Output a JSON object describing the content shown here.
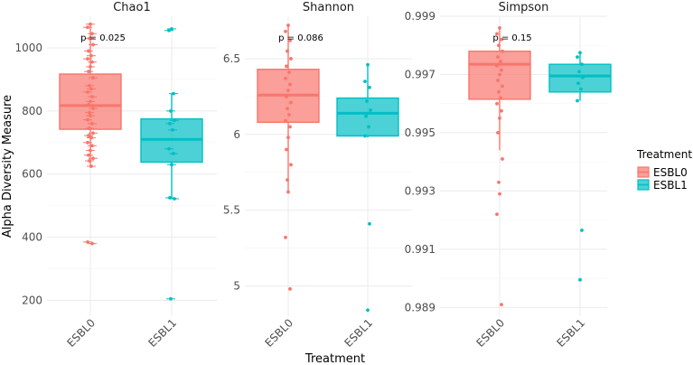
{
  "chart_data": {
    "type": "box",
    "xlabel": "Treatment",
    "ylabel": "Alpha Diversity Measure",
    "categories": [
      "ESBL0",
      "ESBL1"
    ],
    "colors": {
      "ESBL0": "#F8766D",
      "ESBL1": "#00BFC4"
    },
    "legend": {
      "title": "Treatment",
      "entries": [
        "ESBL0",
        "ESBL1"
      ],
      "position": "right"
    },
    "panels": [
      {
        "title": "Chao1",
        "pvalue": "p = 0.025",
        "ylim": [
          150,
          1100
        ],
        "yticks": [
          200,
          400,
          600,
          800,
          1000
        ],
        "boxes": [
          {
            "group": "ESBL0",
            "q1": 742,
            "median": 817,
            "q3": 917,
            "wlow": 620,
            "whigh": 1080,
            "points": [
              1075,
              1065,
              1045,
              1030,
              1010,
              990,
              975,
              965,
              955,
              940,
              925,
              905,
              880,
              870,
              860,
              845,
              830,
              820,
              808,
              795,
              785,
              772,
              760,
              745,
              730,
              722,
              715,
              700,
              690,
              675,
              660,
              650,
              642,
              625,
              385,
              380
            ]
          },
          {
            "group": "ESBL1",
            "q1": 638,
            "median": 710,
            "q3": 775,
            "wlow": 525,
            "whigh": 855,
            "points": [
              1060,
              1055,
              855,
              800,
              770,
              760,
              740,
              680,
              665,
              630,
              525,
              522,
              205
            ]
          }
        ]
      },
      {
        "title": "Shannon",
        "pvalue": "p = 0.086",
        "ylim": [
          4.8,
          6.78
        ],
        "yticks": [
          5.0,
          5.5,
          6.0,
          6.5
        ],
        "boxes": [
          {
            "group": "ESBL0",
            "q1": 6.08,
            "median": 6.26,
            "q3": 6.43,
            "wlow": 5.62,
            "whigh": 6.72,
            "points": [
              6.72,
              6.68,
              6.62,
              6.55,
              6.5,
              6.45,
              6.41,
              6.37,
              6.33,
              6.29,
              6.25,
              6.21,
              6.17,
              6.13,
              6.09,
              6.05,
              5.98,
              5.9,
              5.8,
              5.7,
              5.62,
              5.32,
              4.98
            ]
          },
          {
            "group": "ESBL1",
            "q1": 5.99,
            "median": 6.14,
            "q3": 6.24,
            "wlow": 5.98,
            "whigh": 6.46,
            "points": [
              6.46,
              6.35,
              6.31,
              6.22,
              6.16,
              6.12,
              6.05,
              5.99,
              5.41,
              4.84
            ]
          }
        ]
      },
      {
        "title": "Simpson",
        "pvalue": "p = 0.15",
        "ylim": [
          0.9887,
          0.999
        ],
        "yticks": [
          0.989,
          0.991,
          0.993,
          0.995,
          0.997,
          0.999
        ],
        "tickLabels": [
          "0.989",
          "0.991",
          "0.993",
          "0.995",
          "0.997",
          "0.999"
        ],
        "boxes": [
          {
            "group": "ESBL0",
            "q1": 0.99615,
            "median": 0.99735,
            "q3": 0.9978,
            "wlow": 0.9944,
            "whigh": 0.9986,
            "points": [
              0.9986,
              0.9984,
              0.9982,
              0.998,
              0.9978,
              0.9976,
              0.99745,
              0.9973,
              0.99715,
              0.997,
              0.9968,
              0.9966,
              0.9964,
              0.9962,
              0.996,
              0.99575,
              0.9955,
              0.995,
              0.9941,
              0.9933,
              0.9929,
              0.9922,
              0.9891
            ]
          },
          {
            "group": "ESBL1",
            "q1": 0.9964,
            "median": 0.99695,
            "q3": 0.99735,
            "wlow": 0.9961,
            "whigh": 0.99775,
            "points": [
              0.99775,
              0.9976,
              0.99735,
              0.9971,
              0.9969,
              0.9967,
              0.9965,
              0.9961,
              0.99165,
              0.98995
            ]
          }
        ]
      }
    ]
  }
}
